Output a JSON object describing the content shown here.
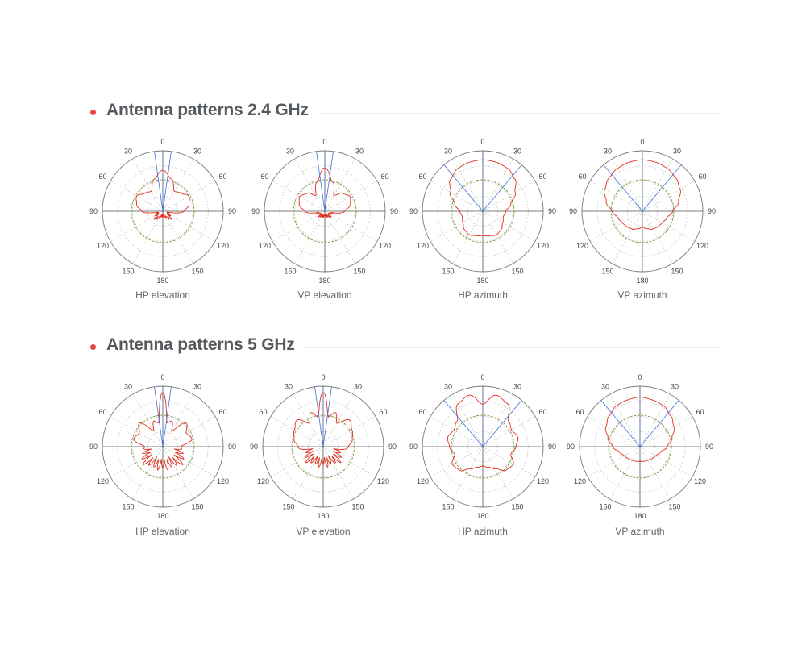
{
  "sections": [
    {
      "title": "Antenna patterns 2.4 GHz",
      "charts": [
        {
          "caption": "HP elevation"
        },
        {
          "caption": "VP elevation"
        },
        {
          "caption": "HP azimuth"
        },
        {
          "caption": "VP azimuth"
        }
      ]
    },
    {
      "title": "Antenna patterns 5 GHz",
      "charts": [
        {
          "caption": "HP elevation"
        },
        {
          "caption": "VP elevation"
        },
        {
          "caption": "HP azimuth"
        },
        {
          "caption": "VP azimuth"
        }
      ]
    }
  ],
  "angle_labels": [
    "0",
    "30",
    "60",
    "90",
    "120",
    "150",
    "180",
    "150",
    "120",
    "90",
    "60",
    "30"
  ],
  "colors": {
    "accent": "#e8453c",
    "pattern": "#e0301e",
    "reference_circle": "#6b8e23",
    "beam_lines": "#3a6fe0",
    "grid": "#999999"
  },
  "chart_data": [
    {
      "type": "polar",
      "title": "HP elevation",
      "band": "2.4 GHz",
      "angles_deg": [
        0,
        15,
        30,
        45,
        60,
        75,
        90,
        105,
        120,
        135,
        150,
        165,
        180
      ],
      "relative_radius": [
        0.68,
        0.55,
        0.38,
        0.42,
        0.5,
        0.45,
        0.35,
        0.1,
        0.15,
        0.2,
        0.15,
        0.1,
        0.1
      ]
    },
    {
      "type": "polar",
      "title": "VP elevation",
      "band": "2.4 GHz",
      "angles_deg": [
        0,
        15,
        30,
        45,
        60,
        75,
        90,
        105,
        120,
        135,
        150,
        165,
        180
      ],
      "relative_radius": [
        0.72,
        0.5,
        0.3,
        0.42,
        0.48,
        0.44,
        0.33,
        0.15,
        0.1,
        0.15,
        0.1,
        0.12,
        0.05
      ]
    },
    {
      "type": "polar",
      "title": "HP azimuth",
      "band": "2.4 GHz",
      "angles_deg": [
        0,
        15,
        30,
        45,
        60,
        75,
        90,
        105,
        120,
        135,
        150,
        165,
        180
      ],
      "relative_radius": [
        0.85,
        0.84,
        0.82,
        0.75,
        0.62,
        0.48,
        0.38,
        0.35,
        0.38,
        0.43,
        0.45,
        0.42,
        0.4
      ]
    },
    {
      "type": "polar",
      "title": "VP azimuth",
      "band": "2.4 GHz",
      "angles_deg": [
        0,
        15,
        30,
        45,
        60,
        75,
        90,
        105,
        120,
        135,
        150,
        165,
        180
      ],
      "relative_radius": [
        0.85,
        0.84,
        0.82,
        0.78,
        0.72,
        0.62,
        0.5,
        0.42,
        0.38,
        0.36,
        0.34,
        0.3,
        0.26
      ]
    },
    {
      "type": "polar",
      "title": "HP elevation",
      "band": "5 GHz",
      "angles_deg": [
        0,
        10,
        20,
        30,
        45,
        60,
        75,
        90,
        105,
        120,
        135,
        150,
        165,
        180
      ],
      "relative_radius": [
        0.9,
        0.4,
        0.45,
        0.3,
        0.55,
        0.45,
        0.5,
        0.3,
        0.35,
        0.4,
        0.45,
        0.35,
        0.4,
        0.35
      ]
    },
    {
      "type": "polar",
      "title": "VP elevation",
      "band": "5 GHz",
      "angles_deg": [
        0,
        10,
        20,
        30,
        45,
        60,
        75,
        90,
        105,
        120,
        135,
        150,
        165,
        180
      ],
      "relative_radius": [
        0.9,
        0.5,
        0.6,
        0.45,
        0.62,
        0.55,
        0.5,
        0.42,
        0.3,
        0.35,
        0.4,
        0.3,
        0.35,
        0.3
      ]
    },
    {
      "type": "polar",
      "title": "HP azimuth",
      "band": "5 GHz",
      "angles_deg": [
        0,
        15,
        30,
        45,
        60,
        75,
        90,
        105,
        120,
        135,
        150,
        165,
        180
      ],
      "relative_radius": [
        0.7,
        0.88,
        0.82,
        0.6,
        0.55,
        0.6,
        0.55,
        0.48,
        0.58,
        0.55,
        0.42,
        0.35,
        0.32
      ]
    },
    {
      "type": "polar",
      "title": "VP azimuth",
      "band": "5 GHz",
      "angles_deg": [
        0,
        15,
        30,
        45,
        60,
        75,
        90,
        105,
        120,
        135,
        150,
        165,
        180
      ],
      "relative_radius": [
        0.82,
        0.8,
        0.78,
        0.72,
        0.65,
        0.55,
        0.45,
        0.35,
        0.3,
        0.28,
        0.26,
        0.25,
        0.24
      ]
    }
  ]
}
